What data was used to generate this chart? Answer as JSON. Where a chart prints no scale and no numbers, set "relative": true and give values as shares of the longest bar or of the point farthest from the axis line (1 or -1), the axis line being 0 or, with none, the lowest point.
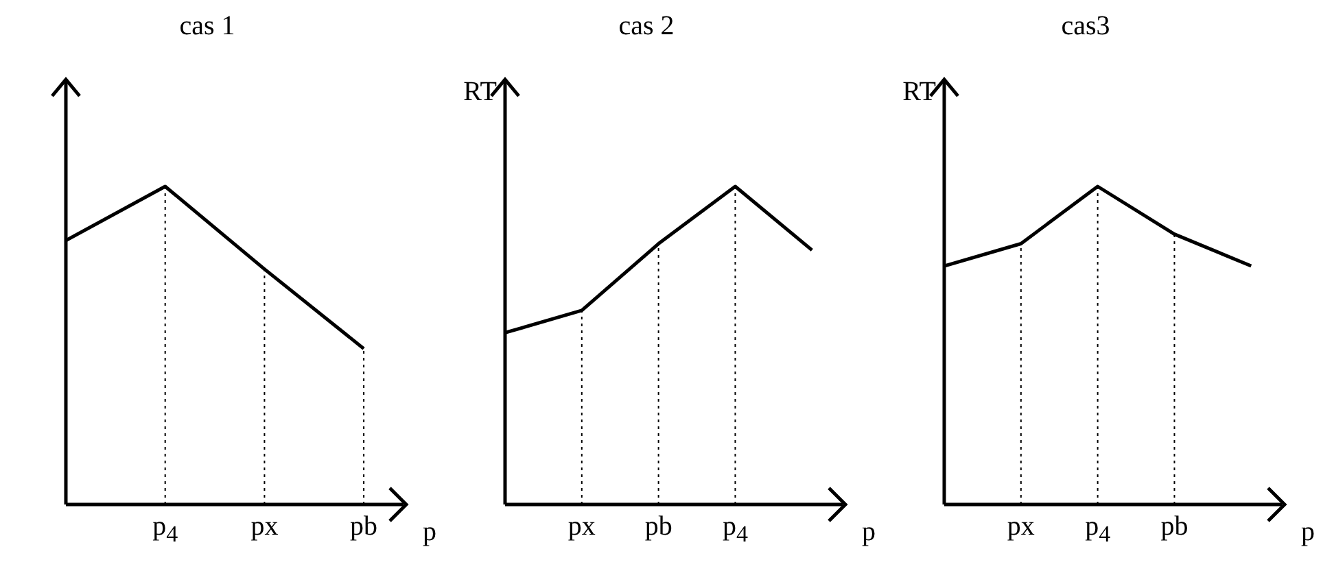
{
  "chart_data": [
    {
      "type": "line",
      "title": "cas 1",
      "xlabel": "p",
      "categories": [
        null,
        "p$_{4}$",
        "px",
        "pb"
      ],
      "relative": true,
      "legend": false,
      "grid": false,
      "marker": "none",
      "line_style": "solid",
      "series": [
        {
          "color": "#000000",
          "values": [
            0.83,
            1,
            0.74,
            0.49
          ]
        }
      ],
      "ref_lines": [
        {
          "axis": "x",
          "value": "p$_{4}$",
          "line_style": "dotted",
          "color": "#000000"
        },
        {
          "axis": "x",
          "value": "px",
          "line_style": "dotted",
          "color": "#000000"
        },
        {
          "axis": "x",
          "value": "pb",
          "line_style": "dotted",
          "color": "#000000"
        }
      ]
    },
    {
      "type": "line",
      "title": "cas 2",
      "xlabel": "p",
      "ylabel": "RT",
      "categories": [
        null,
        "px",
        "pb",
        "p$_{4}$",
        null
      ],
      "relative": true,
      "legend": false,
      "grid": false,
      "marker": "none",
      "line_style": "solid",
      "series": [
        {
          "color": "#000000",
          "values": [
            0.54,
            0.61,
            0.82,
            1,
            0.8
          ]
        }
      ],
      "ref_lines": [
        {
          "axis": "x",
          "value": "px",
          "line_style": "dotted",
          "color": "#000000"
        },
        {
          "axis": "x",
          "value": "pb",
          "line_style": "dotted",
          "color": "#000000"
        },
        {
          "axis": "x",
          "value": "p$_{4}$",
          "line_style": "dotted",
          "color": "#000000"
        }
      ]
    },
    {
      "type": "line",
      "title": "cas3",
      "xlabel": "p",
      "ylabel": "RT",
      "categories": [
        null,
        "px",
        "p$_{4}$",
        "pb",
        null
      ],
      "relative": true,
      "legend": false,
      "grid": false,
      "marker": "none",
      "line_style": "solid",
      "series": [
        {
          "color": "#000000",
          "values": [
            0.75,
            0.82,
            1,
            0.85,
            0.75
          ]
        }
      ],
      "ref_lines": [
        {
          "axis": "x",
          "value": "px",
          "line_style": "dotted",
          "color": "#000000"
        },
        {
          "axis": "x",
          "value": "p$_{4}$",
          "line_style": "dotted",
          "color": "#000000"
        },
        {
          "axis": "x",
          "value": "pb",
          "line_style": "dotted",
          "color": "#000000"
        }
      ]
    }
  ]
}
